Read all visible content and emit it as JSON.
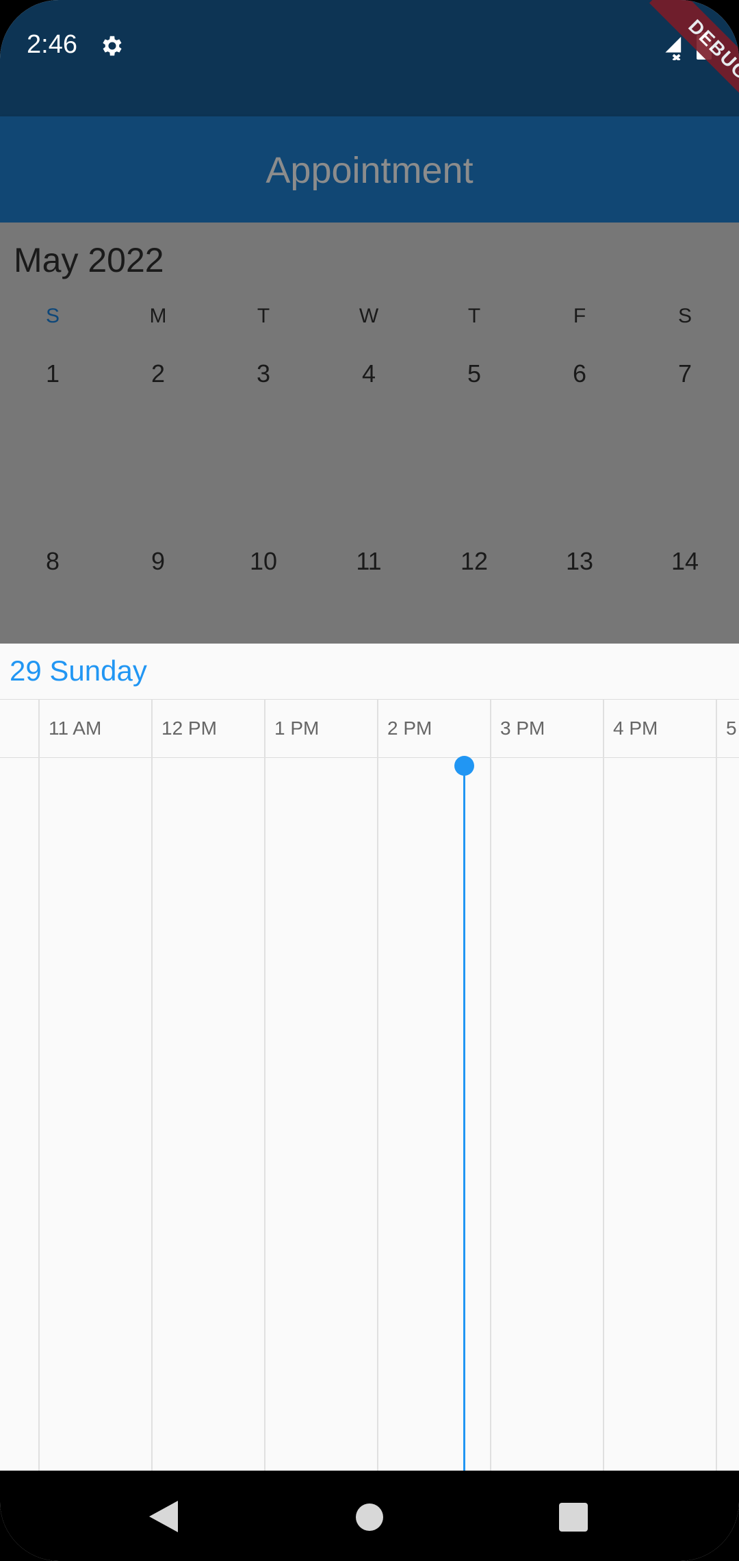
{
  "status_bar": {
    "time": "2:46",
    "settings_icon": "gear-icon",
    "signal_icon": "signal-off-icon",
    "battery_icon": "battery-icon",
    "debug_banner": "DEBUG"
  },
  "app_bar": {
    "title": "Appointment"
  },
  "month_view": {
    "title": "May 2022",
    "weekdays": [
      "S",
      "M",
      "T",
      "W",
      "T",
      "F",
      "S"
    ],
    "weeks": [
      [
        "1",
        "2",
        "3",
        "4",
        "5",
        "6",
        "7"
      ],
      [
        "8",
        "9",
        "10",
        "11",
        "12",
        "13",
        "14"
      ]
    ]
  },
  "day_view": {
    "date_label": "29  Sunday",
    "time_slots": [
      "11 AM",
      "12 PM",
      "1 PM",
      "2 PM",
      "3 PM",
      "4 PM",
      "5"
    ]
  },
  "colors": {
    "status_bar": "#0d3454",
    "app_bar": "#114774",
    "accent": "#2196f3",
    "dim_overlay": "#777777"
  },
  "nav_bar": {
    "back_icon": "back-icon",
    "home_icon": "home-icon",
    "recents_icon": "recents-icon"
  }
}
